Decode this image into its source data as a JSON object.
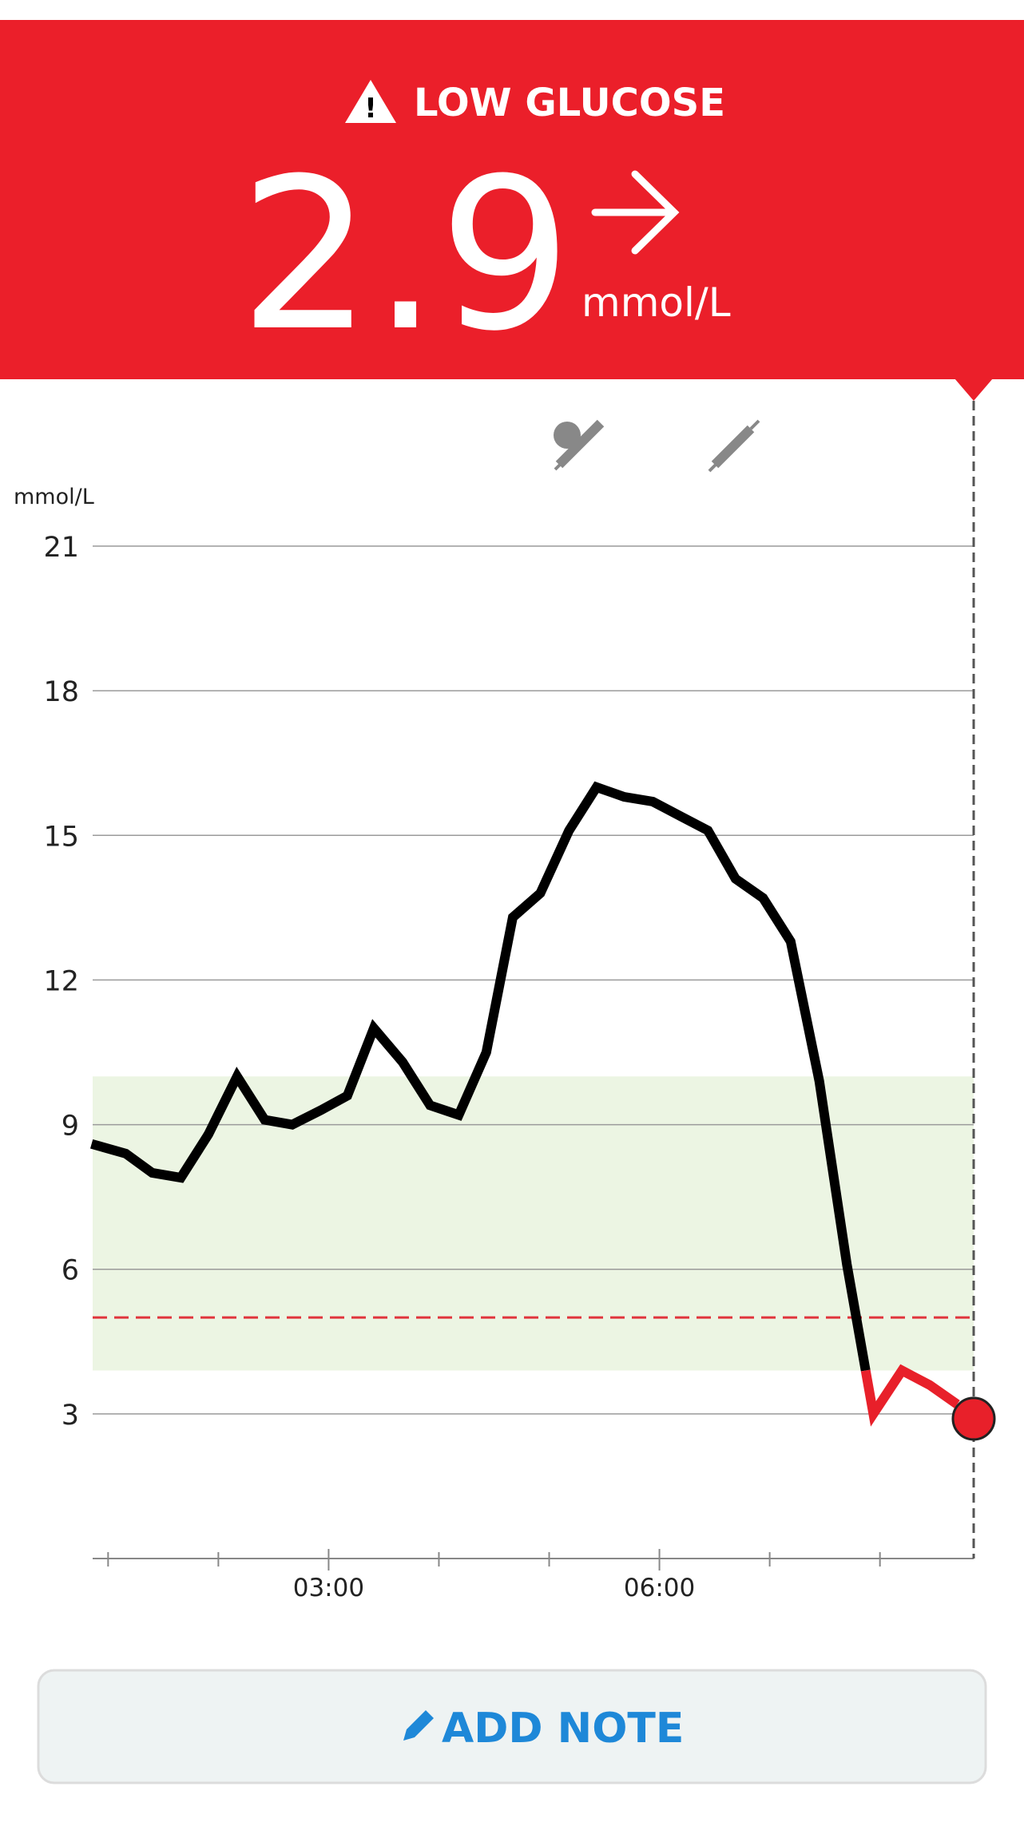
{
  "header": {
    "alert": "LOW GLUCOSE",
    "unit": "mmol/L"
  },
  "chart_data": {
    "type": "line",
    "ylabel": "mmol/L",
    "x": [
      0.85,
      1.16,
      1.4,
      1.66,
      1.91,
      2.17,
      2.42,
      2.67,
      2.93,
      3.17,
      3.41,
      3.67,
      3.92,
      4.18,
      4.43,
      4.67,
      4.92,
      5.18,
      5.43,
      5.68,
      5.94,
      6.19,
      6.44,
      6.69,
      6.94,
      7.19,
      7.45,
      7.7,
      7.87,
      7.94,
      8.2,
      8.45,
      8.7
    ],
    "series": [
      {
        "color": "#000000",
        "values": [
          8.6,
          8.4,
          8.0,
          7.9,
          8.8,
          10.0,
          9.1,
          9.0,
          9.3,
          9.6,
          11.0,
          10.3,
          9.4,
          9.2,
          10.5,
          13.3,
          13.8,
          15.1,
          16.0,
          15.8,
          15.7,
          15.4,
          15.1,
          14.1,
          13.7,
          12.8,
          9.9,
          6.1,
          3.9,
          null,
          null,
          null,
          null
        ]
      },
      {
        "color": "#e8202a",
        "values": [
          null,
          null,
          null,
          null,
          null,
          null,
          null,
          null,
          null,
          null,
          null,
          null,
          null,
          null,
          null,
          null,
          null,
          null,
          null,
          null,
          null,
          null,
          null,
          null,
          null,
          null,
          null,
          null,
          3.9,
          3.0,
          3.9,
          3.6,
          3.2
        ]
      }
    ],
    "current": {
      "x": 8.85,
      "value": 2.9
    },
    "target_range": [
      3.9,
      10
    ],
    "low_line": 5,
    "xlim": [
      0.86,
      8.85
    ],
    "xticks": [
      {
        "value": 3,
        "label": "03:00"
      },
      {
        "value": 6,
        "label": "06:00"
      }
    ],
    "xminorticks": [
      1,
      2,
      4,
      5,
      7,
      8
    ],
    "ylim": [
      0,
      21
    ],
    "yticks": [
      3,
      6,
      9,
      12,
      15,
      18,
      21
    ],
    "grid": true
  },
  "button": "ADD NOTE"
}
